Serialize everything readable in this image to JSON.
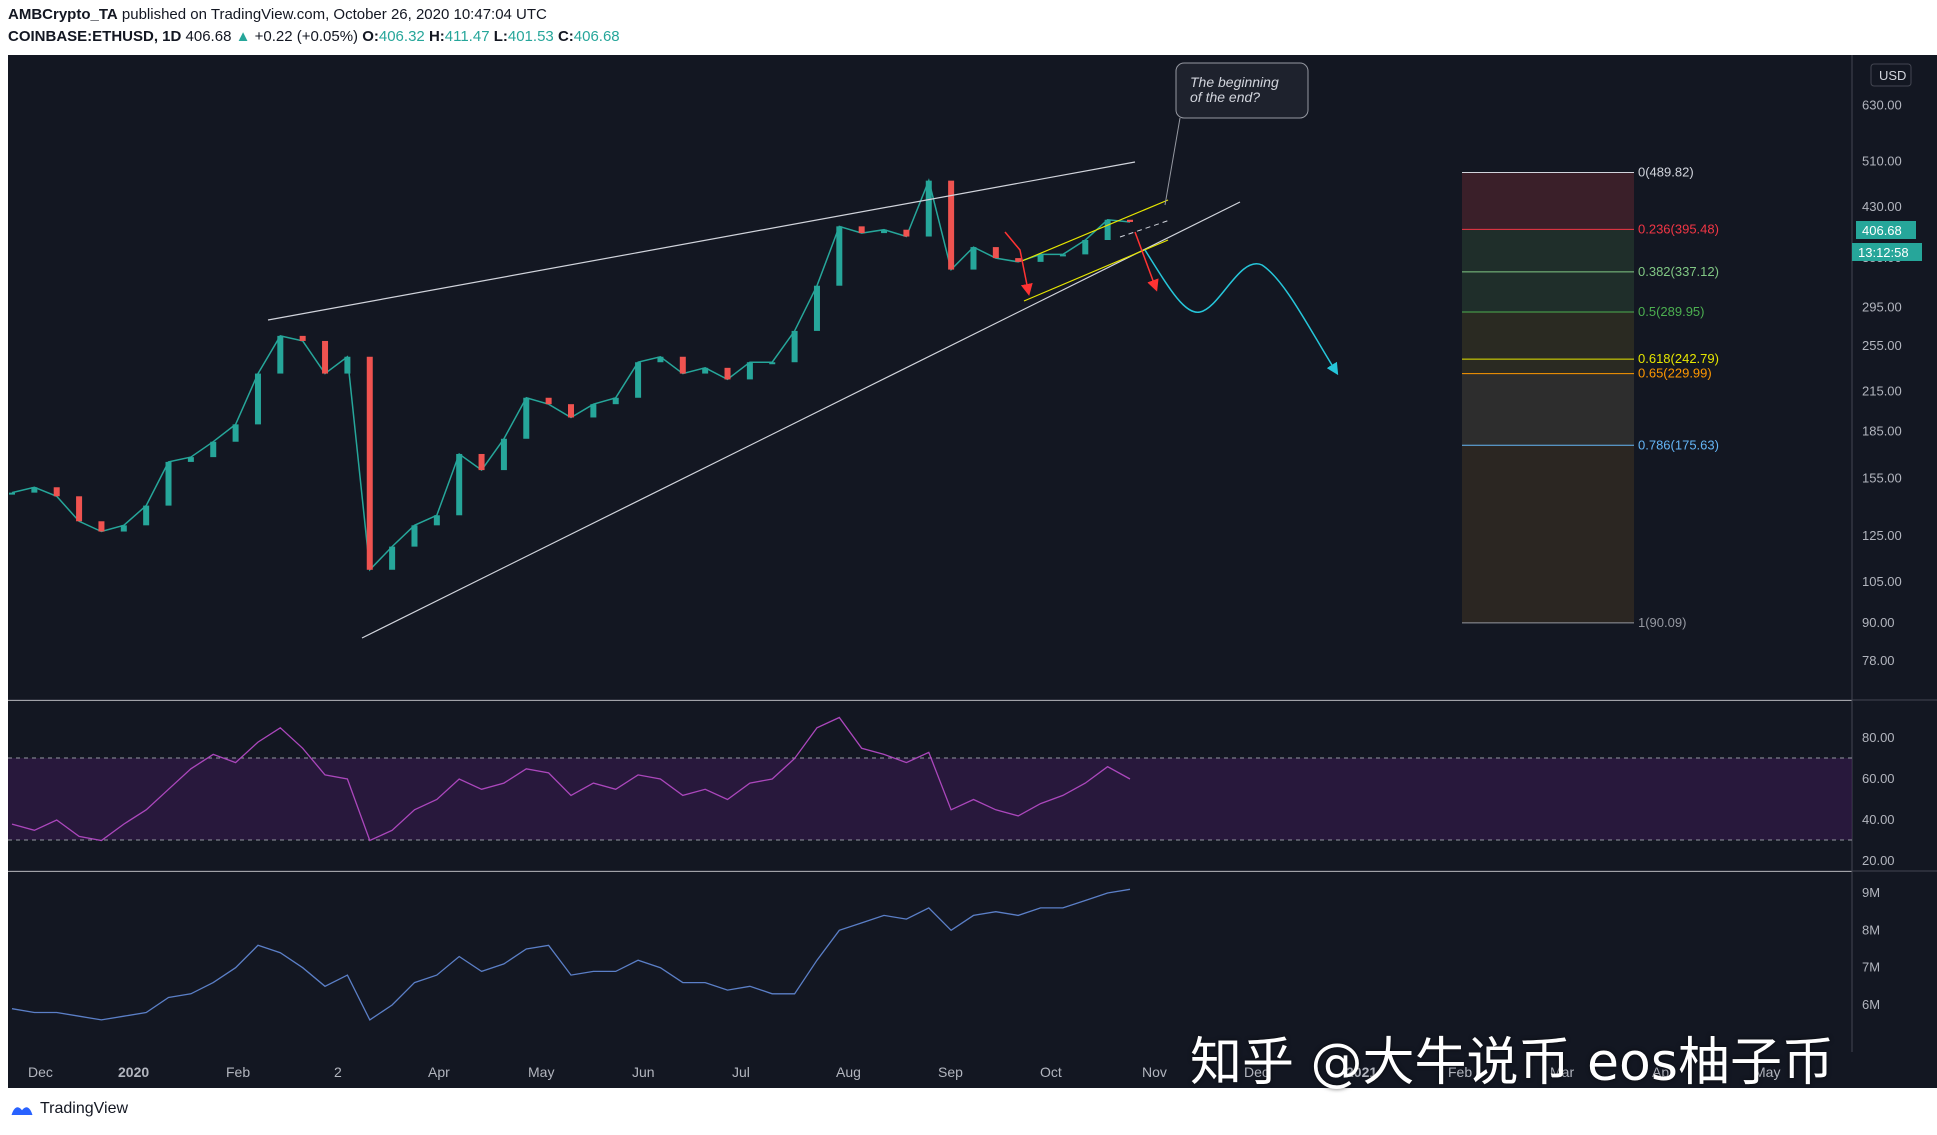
{
  "header": {
    "publisher": "AMBCrypto_TA",
    "published_text": "published on TradingView.com, October 26, 2020 10:47:04 UTC",
    "symbol": "COINBASE:ETHUSD, 1D",
    "last": "406.68",
    "change": "+0.22 (+0.05%)",
    "o_label": "O:",
    "o_value": "406.32",
    "h_label": "H:",
    "h_value": "411.47",
    "l_label": "L:",
    "l_value": "401.53",
    "c_label": "C:",
    "c_value": "406.68"
  },
  "footer": {
    "brand": "TradingView"
  },
  "watermark": "知乎 @大牛说币 eos柚子币",
  "chart_data": {
    "type": "line",
    "x_ticks": [
      "Dec",
      "2020",
      "Feb",
      "2",
      "Apr",
      "May",
      "Jun",
      "Jul",
      "Aug",
      "Sep",
      "Oct",
      "Nov",
      "Dec",
      "2021",
      "Feb",
      "Mar",
      "Apr",
      "May"
    ],
    "price_axis": {
      "currency": "USD",
      "ticks": [
        "630.00",
        "510.00",
        "430.00",
        "355.00",
        "295.00",
        "255.00",
        "215.00",
        "185.00",
        "155.00",
        "125.00",
        "105.00",
        "90.00",
        "78.00"
      ],
      "scale": "log",
      "last_price_label": "406.68",
      "countdown_label": "13:12:58"
    },
    "price_series": {
      "name": "ETHUSD",
      "x": [
        "Nov 25",
        "Dec 1",
        "Dec 8",
        "Dec 15",
        "Dec 22",
        "Dec 29",
        "Jan 5",
        "Jan 12",
        "Jan 19",
        "Jan 26",
        "Feb 2",
        "Feb 9",
        "Feb 14",
        "Feb 21",
        "Feb 28",
        "Mar 6",
        "Mar 12",
        "Mar 16",
        "Mar 23",
        "Mar 30",
        "Apr 6",
        "Apr 13",
        "Apr 20",
        "Apr 27",
        "May 4",
        "May 11",
        "May 18",
        "May 25",
        "Jun 1",
        "Jun 8",
        "Jun 15",
        "Jun 22",
        "Jun 29",
        "Jul 6",
        "Jul 13",
        "Jul 20",
        "Jul 27",
        "Aug 3",
        "Aug 10",
        "Aug 17",
        "Aug 24",
        "Sep 1",
        "Sep 5",
        "Sep 12",
        "Sep 19",
        "Sep 26",
        "Oct 3",
        "Oct 10",
        "Oct 17",
        "Oct 21",
        "Oct 26"
      ],
      "close": [
        147,
        150,
        145,
        132,
        127,
        130,
        140,
        165,
        168,
        178,
        190,
        230,
        265,
        260,
        230,
        245,
        110,
        120,
        130,
        135,
        170,
        160,
        180,
        210,
        205,
        195,
        205,
        210,
        240,
        245,
        230,
        235,
        225,
        240,
        240,
        270,
        320,
        400,
        390,
        395,
        385,
        475,
        340,
        370,
        355,
        350,
        360,
        360,
        380,
        410,
        406.68
      ]
    },
    "fibonacci": [
      {
        "level": "0",
        "value": "489.82"
      },
      {
        "level": "0.236",
        "value": "395.48"
      },
      {
        "level": "0.382",
        "value": "337.12"
      },
      {
        "level": "0.5",
        "value": "289.95"
      },
      {
        "level": "0.618",
        "value": "242.79"
      },
      {
        "level": "0.65",
        "value": "229.99"
      },
      {
        "level": "0.786",
        "value": "175.63"
      },
      {
        "level": "1",
        "value": "90.09"
      }
    ],
    "annotation": "The beginning of the end?",
    "rsi": {
      "ticks": [
        "80.00",
        "60.00",
        "40.00",
        "20.00"
      ],
      "band_upper": 70,
      "band_lower": 30,
      "values": [
        38,
        35,
        40,
        32,
        30,
        38,
        45,
        55,
        65,
        72,
        68,
        78,
        85,
        75,
        62,
        60,
        30,
        35,
        45,
        50,
        60,
        55,
        58,
        65,
        63,
        52,
        58,
        55,
        62,
        60,
        52,
        55,
        50,
        58,
        60,
        70,
        85,
        90,
        75,
        72,
        68,
        73,
        45,
        50,
        45,
        42,
        48,
        52,
        58,
        66,
        60
      ]
    },
    "volume_indicator": {
      "ticks": [
        "9M",
        "8M",
        "7M",
        "6M"
      ],
      "values": [
        5.9,
        5.8,
        5.8,
        5.7,
        5.6,
        5.7,
        5.8,
        6.2,
        6.3,
        6.6,
        7.0,
        7.6,
        7.4,
        7.0,
        6.5,
        6.8,
        5.6,
        6.0,
        6.6,
        6.8,
        7.3,
        6.9,
        7.1,
        7.5,
        7.6,
        6.8,
        6.9,
        6.9,
        7.2,
        7.0,
        6.6,
        6.6,
        6.4,
        6.5,
        6.3,
        6.3,
        7.2,
        8.0,
        8.2,
        8.4,
        8.3,
        8.6,
        8.0,
        8.4,
        8.5,
        8.4,
        8.6,
        8.6,
        8.8,
        9.0,
        9.1
      ]
    }
  }
}
